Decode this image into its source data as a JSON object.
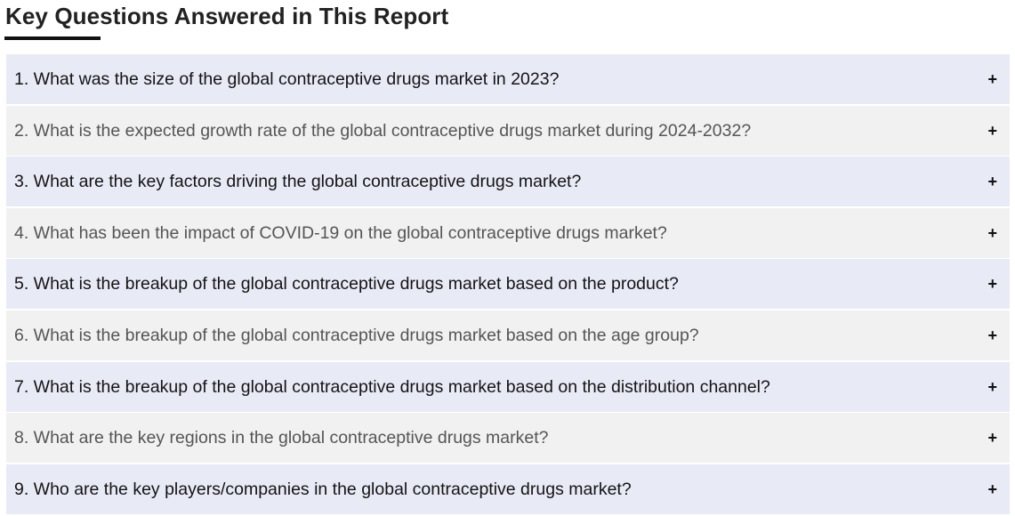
{
  "section": {
    "title": "Key Questions Answered in This Report"
  },
  "faq": {
    "toggle_symbol": "+",
    "items": [
      {
        "question": "1. What was the size of the global contraceptive drugs market in 2023?"
      },
      {
        "question": "2. What is the expected growth rate of the global contraceptive drugs market during 2024-2032?"
      },
      {
        "question": "3. What are the key factors driving the global contraceptive drugs market?"
      },
      {
        "question": "4. What has been the impact of COVID-19 on the global contraceptive drugs market?"
      },
      {
        "question": "5. What is the breakup of the global contraceptive drugs market based on the product?"
      },
      {
        "question": "6. What is the breakup of the global contraceptive drugs market based on the age group?"
      },
      {
        "question": "7. What is the breakup of the global contraceptive drugs market based on the distribution channel?"
      },
      {
        "question": "8. What are the key regions in the global contraceptive drugs market?"
      },
      {
        "question": "9. Who are the key players/companies in the global contraceptive drugs market?"
      }
    ]
  },
  "colors": {
    "row_odd_bg": "#e8eaf6",
    "row_even_bg": "#f1f1f1",
    "row_odd_text": "#141414",
    "row_even_text": "#555555",
    "heading_text": "#222222",
    "underline": "#111111"
  }
}
